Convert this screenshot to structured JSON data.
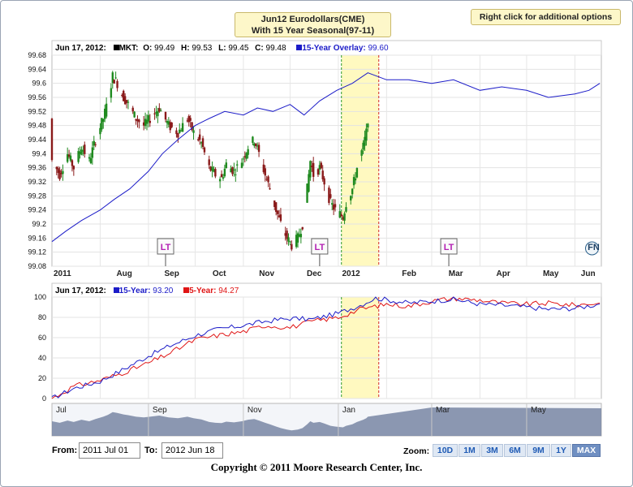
{
  "header": {
    "title_line1": "Jun12 Eurodollars(CME)",
    "title_line2": "With 15 Year Seasonal(97-11)",
    "options_label": "Right click for additional options"
  },
  "colors": {
    "up": "#1f8a1f",
    "down": "#8a1a1a",
    "overlay": "#1c1cc8",
    "five_year": "#e01515",
    "window_fill": "#fff9c0",
    "entry_line": "#2a9a2a",
    "exit_line": "#d42a2a",
    "navigator_fill": "#7886a4"
  },
  "legend_top": {
    "date": "Jun 17, 2012:",
    "mkt_label": "MKT:",
    "o_label": "O:",
    "o_val": "99.49",
    "h_label": "H:",
    "h_val": "99.53",
    "l_label": "L:",
    "l_val": "99.45",
    "c_label": "C:",
    "c_val": "99.48",
    "overlay_label": "15-Year Overlay:",
    "overlay_val": "99.60"
  },
  "legend_bottom": {
    "date": "Jun 17, 2012:",
    "s15_label": "15-Year:",
    "s15_val": "93.20",
    "s5_label": "5-Year:",
    "s5_val": "94.27"
  },
  "chart_data": [
    {
      "type": "candlestick",
      "title": "Jun12 Eurodollars(CME) With 15 Year Seasonal(97-11)",
      "x_start": "2011-07-01",
      "x_end": "2012-06-18",
      "x_tick_labels": [
        "2011",
        "Aug",
        "Sep",
        "Oct",
        "Nov",
        "Dec",
        "2012",
        "Feb",
        "Mar",
        "Apr",
        "May",
        "Jun"
      ],
      "ylim": [
        99.08,
        99.68
      ],
      "y_ticks": [
        99.08,
        99.12,
        99.16,
        99.2,
        99.24,
        99.28,
        99.32,
        99.36,
        99.4,
        99.44,
        99.48,
        99.52,
        99.56,
        99.6,
        99.64,
        99.68
      ],
      "grid": true,
      "seasonal_window": {
        "start": "2012-01-03",
        "end": "2012-01-27"
      },
      "markers": [
        {
          "date": "2011-09-12",
          "label": "LT"
        },
        {
          "date": "2011-12-20",
          "label": "LT"
        },
        {
          "date": "2012-03-12",
          "label": "LT"
        },
        {
          "date": "2012-06-12",
          "label": "FN"
        }
      ],
      "price_path": [
        [
          "2011-07-01",
          99.38
        ],
        [
          "2011-07-06",
          99.34
        ],
        [
          "2011-07-11",
          99.4
        ],
        [
          "2011-07-15",
          99.36
        ],
        [
          "2011-07-20",
          99.42
        ],
        [
          "2011-07-25",
          99.38
        ],
        [
          "2011-07-29",
          99.44
        ],
        [
          "2011-08-03",
          99.5
        ],
        [
          "2011-08-06",
          99.55
        ],
        [
          "2011-08-09",
          99.62
        ],
        [
          "2011-08-12",
          99.6
        ],
        [
          "2011-08-16",
          99.56
        ],
        [
          "2011-08-19",
          99.54
        ],
        [
          "2011-08-24",
          99.5
        ],
        [
          "2011-08-29",
          99.48
        ],
        [
          "2011-09-02",
          99.5
        ],
        [
          "2011-09-08",
          99.53
        ],
        [
          "2011-09-14",
          99.48
        ],
        [
          "2011-09-20",
          99.46
        ],
        [
          "2011-09-26",
          99.5
        ],
        [
          "2011-09-30",
          99.46
        ],
        [
          "2011-10-05",
          99.43
        ],
        [
          "2011-10-10",
          99.36
        ],
        [
          "2011-10-14",
          99.34
        ],
        [
          "2011-10-18",
          99.33
        ],
        [
          "2011-10-21",
          99.37
        ],
        [
          "2011-10-26",
          99.35
        ],
        [
          "2011-10-31",
          99.38
        ],
        [
          "2011-11-04",
          99.42
        ],
        [
          "2011-11-08",
          99.44
        ],
        [
          "2011-11-11",
          99.4
        ],
        [
          "2011-11-15",
          99.34
        ],
        [
          "2011-11-18",
          99.3
        ],
        [
          "2011-11-22",
          99.24
        ],
        [
          "2011-11-25",
          99.2
        ],
        [
          "2011-11-29",
          99.16
        ],
        [
          "2011-12-02",
          99.14
        ],
        [
          "2011-12-06",
          99.16
        ],
        [
          "2011-12-09",
          99.2
        ],
        [
          "2011-12-12",
          99.3
        ],
        [
          "2011-12-14",
          99.38
        ],
        [
          "2011-12-16",
          99.34
        ],
        [
          "2011-12-20",
          99.36
        ],
        [
          "2011-12-23",
          99.32
        ],
        [
          "2011-12-27",
          99.26
        ],
        [
          "2011-12-30",
          99.24
        ],
        [
          "2012-01-04",
          99.22
        ],
        [
          "2012-01-06",
          99.26
        ],
        [
          "2012-01-10",
          99.3
        ],
        [
          "2012-01-13",
          99.36
        ],
        [
          "2012-01-17",
          99.42
        ],
        [
          "2012-01-19",
          99.46
        ],
        [
          "2012-01-20",
          99.5
        ]
      ],
      "overlay_path": [
        [
          "2011-07-01",
          99.15
        ],
        [
          "2011-07-10",
          99.18
        ],
        [
          "2011-07-20",
          99.21
        ],
        [
          "2011-08-01",
          99.24
        ],
        [
          "2011-08-10",
          99.27
        ],
        [
          "2011-08-20",
          99.3
        ],
        [
          "2011-09-01",
          99.35
        ],
        [
          "2011-09-10",
          99.4
        ],
        [
          "2011-09-20",
          99.44
        ],
        [
          "2011-10-01",
          99.48
        ],
        [
          "2011-10-10",
          99.5
        ],
        [
          "2011-10-20",
          99.52
        ],
        [
          "2011-11-01",
          99.51
        ],
        [
          "2011-11-10",
          99.53
        ],
        [
          "2011-11-20",
          99.52
        ],
        [
          "2011-12-01",
          99.54
        ],
        [
          "2011-12-10",
          99.51
        ],
        [
          "2011-12-20",
          99.55
        ],
        [
          "2011-12-31",
          99.58
        ],
        [
          "2012-01-10",
          99.6
        ],
        [
          "2012-01-20",
          99.63
        ],
        [
          "2012-02-01",
          99.61
        ],
        [
          "2012-02-15",
          99.61
        ],
        [
          "2012-03-01",
          99.6
        ],
        [
          "2012-03-15",
          99.61
        ],
        [
          "2012-04-01",
          99.58
        ],
        [
          "2012-04-15",
          99.59
        ],
        [
          "2012-05-01",
          99.58
        ],
        [
          "2012-05-15",
          99.56
        ],
        [
          "2012-06-01",
          99.57
        ],
        [
          "2012-06-10",
          99.58
        ],
        [
          "2012-06-17",
          99.6
        ]
      ]
    },
    {
      "type": "line",
      "ylim": [
        0,
        100
      ],
      "y_ticks": [
        0,
        20,
        40,
        60,
        80,
        100
      ],
      "grid": true,
      "seasonal_window": {
        "start": "2012-01-03",
        "end": "2012-01-27"
      },
      "series": [
        {
          "name": "15-Year",
          "values": [
            [
              "2011-07-01",
              0
            ],
            [
              "2011-07-15",
              10
            ],
            [
              "2011-08-01",
              17
            ],
            [
              "2011-08-15",
              28
            ],
            [
              "2011-09-01",
              42
            ],
            [
              "2011-09-15",
              52
            ],
            [
              "2011-10-01",
              62
            ],
            [
              "2011-10-15",
              68
            ],
            [
              "2011-11-01",
              72
            ],
            [
              "2011-11-15",
              76
            ],
            [
              "2011-12-01",
              79
            ],
            [
              "2011-12-15",
              78
            ],
            [
              "2012-01-01",
              84
            ],
            [
              "2012-01-15",
              92
            ],
            [
              "2012-01-25",
              99
            ],
            [
              "2012-02-15",
              94
            ],
            [
              "2012-03-01",
              96
            ],
            [
              "2012-03-15",
              98
            ],
            [
              "2012-04-01",
              93
            ],
            [
              "2012-04-15",
              92
            ],
            [
              "2012-05-01",
              90
            ],
            [
              "2012-05-15",
              88
            ],
            [
              "2012-06-01",
              89
            ],
            [
              "2012-06-17",
              93.2
            ]
          ]
        },
        {
          "name": "5-Year",
          "values": [
            [
              "2011-07-01",
              0
            ],
            [
              "2011-07-15",
              12
            ],
            [
              "2011-08-01",
              18
            ],
            [
              "2011-08-15",
              25
            ],
            [
              "2011-09-01",
              35
            ],
            [
              "2011-09-15",
              45
            ],
            [
              "2011-10-01",
              58
            ],
            [
              "2011-10-15",
              62
            ],
            [
              "2011-11-01",
              66
            ],
            [
              "2011-11-15",
              72
            ],
            [
              "2011-12-01",
              70
            ],
            [
              "2011-12-15",
              76
            ],
            [
              "2012-01-01",
              80
            ],
            [
              "2012-01-15",
              88
            ],
            [
              "2012-02-01",
              93
            ],
            [
              "2012-02-15",
              91
            ],
            [
              "2012-03-01",
              96
            ],
            [
              "2012-03-15",
              99
            ],
            [
              "2012-04-01",
              97
            ],
            [
              "2012-04-15",
              94
            ],
            [
              "2012-05-01",
              93
            ],
            [
              "2012-05-15",
              94
            ],
            [
              "2012-06-01",
              92
            ],
            [
              "2012-06-17",
              94.27
            ]
          ]
        }
      ]
    }
  ],
  "navigator": {
    "months": [
      "Jul",
      "Sep",
      "Nov",
      "Jan",
      "Mar",
      "May"
    ]
  },
  "controls": {
    "from_label": "From:",
    "from_value": "2011 Jul 01",
    "to_label": "To:",
    "to_value": "2012 Jun 18",
    "zoom_label": "Zoom:",
    "zoom_options": [
      "10D",
      "1M",
      "3M",
      "6M",
      "9M",
      "1Y",
      "MAX"
    ],
    "zoom_selected": "MAX"
  },
  "footer": {
    "copyright": "Copyright © 2011 Moore Research Center, Inc."
  }
}
